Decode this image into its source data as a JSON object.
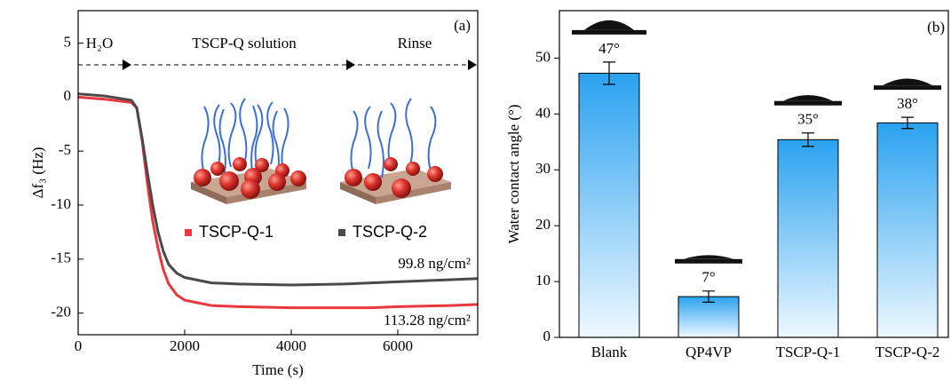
{
  "chart_data": [
    {
      "type": "line",
      "panel_label": "(a)",
      "x_label": "Time (s)",
      "y_label": "Δf₃ (Hz)",
      "x": [
        0,
        500,
        1000,
        1100,
        1200,
        1300,
        1400,
        1500,
        1600,
        1700,
        1850,
        2000,
        2500,
        3000,
        4000,
        5000,
        5500,
        6000,
        7000,
        7500
      ],
      "series": [
        {
          "name": "TSCP-Q-1",
          "color": "#e8383d",
          "values": [
            0,
            -0.2,
            -0.5,
            -1,
            -4,
            -8,
            -11.5,
            -14,
            -16,
            -17.3,
            -18.3,
            -18.8,
            -19.3,
            -19.4,
            -19.5,
            -19.5,
            -19.5,
            -19.4,
            -19.3,
            -19.2
          ]
        },
        {
          "name": "TSCP-Q-2",
          "color": "#4a4a4a",
          "values": [
            0.3,
            0.1,
            -0.3,
            -1,
            -3.8,
            -7,
            -10,
            -12.5,
            -14.3,
            -15.5,
            -16.3,
            -16.7,
            -17.2,
            -17.3,
            -17.4,
            -17.3,
            -17.2,
            -17.1,
            -16.9,
            -16.8
          ]
        }
      ],
      "phase_labels": [
        "H₂O",
        "TSCP-Q solution",
        "Rinse"
      ],
      "mass_labels": [
        "99.8 ng/cm²",
        "113.28 ng/cm²"
      ],
      "xlim": [
        0,
        7500
      ],
      "xticks": [
        0,
        2000,
        4000,
        6000
      ],
      "ylim": [
        -22,
        8
      ],
      "yticks": [
        -20,
        -15,
        -10,
        -5,
        0,
        5
      ]
    },
    {
      "type": "bar",
      "panel_label": "(b)",
      "y_label": "Water contact angle (°)",
      "color": "#2aa2f0",
      "categories": [
        "Blank",
        "QP4VP",
        "TSCP-Q-1",
        "TSCP-Q-2"
      ],
      "values": [
        47.3,
        7.3,
        35.4,
        38.4
      ],
      "errors": [
        2,
        1,
        1.2,
        1
      ],
      "value_labels": [
        "47°",
        "7°",
        "35°",
        "38°"
      ],
      "ylim": [
        0,
        58.5
      ],
      "yticks": [
        0,
        10,
        20,
        30,
        40,
        50
      ]
    }
  ]
}
